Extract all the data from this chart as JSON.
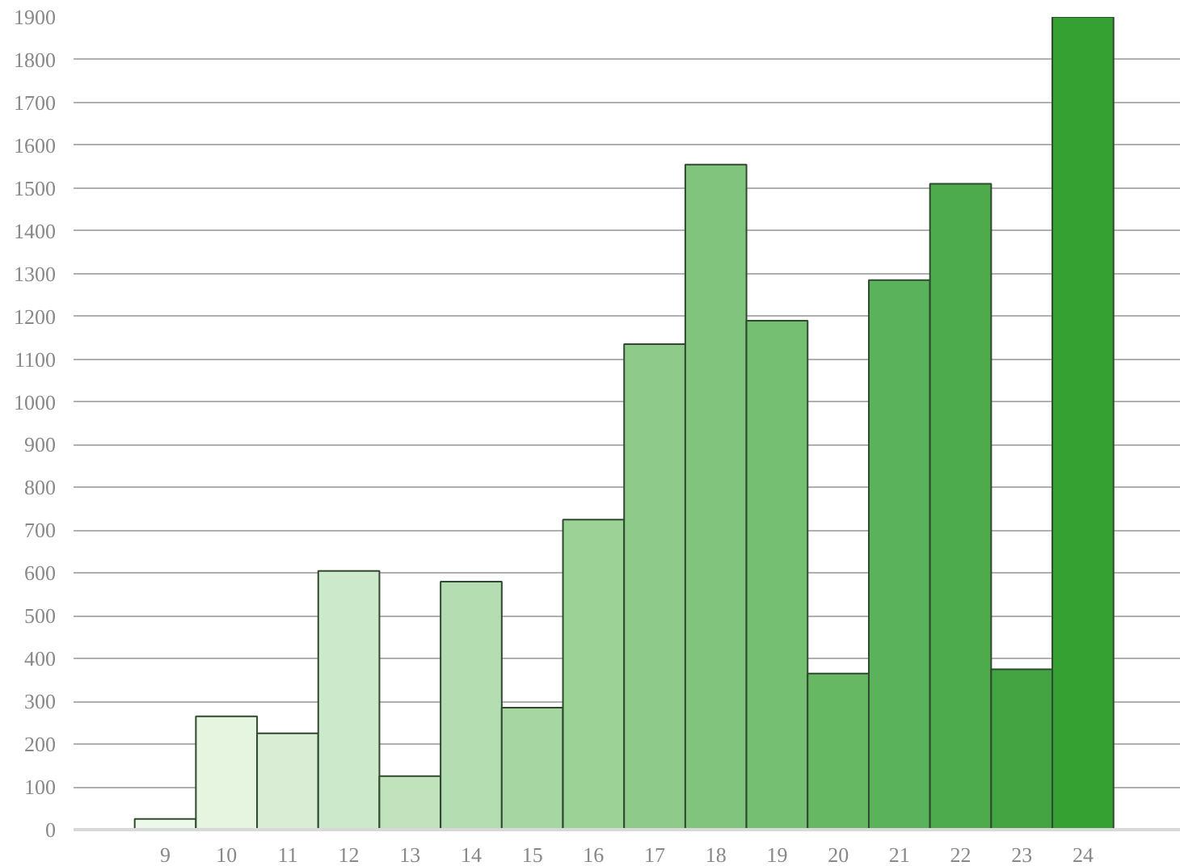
{
  "chart_data": {
    "type": "bar",
    "x": [
      9,
      10,
      11,
      12,
      13,
      14,
      15,
      16,
      17,
      18,
      19,
      20,
      21,
      22,
      23,
      24
    ],
    "values": [
      25,
      265,
      225,
      605,
      125,
      580,
      285,
      725,
      1135,
      1555,
      1190,
      365,
      1285,
      1510,
      375,
      1900
    ],
    "colors": [
      "#edf8ea",
      "#e5f5e0",
      "#d8edd3",
      "#cde9cc",
      "#c0e3bc",
      "#b4deb1",
      "#a6d7a3",
      "#9bd295",
      "#8ecb8a",
      "#80c47d",
      "#74bf72",
      "#66b863",
      "#5ab25a",
      "#4dab4c",
      "#42a541",
      "#35a133"
    ],
    "xlim": [
      7.5,
      25.6
    ],
    "xticks": [
      9,
      10,
      11,
      12,
      13,
      14,
      15,
      16,
      17,
      18,
      19,
      20,
      21,
      22,
      23,
      24
    ],
    "ylim": [
      0,
      1900
    ],
    "yticks": [
      0,
      100,
      200,
      300,
      400,
      500,
      600,
      700,
      800,
      900,
      1000,
      1100,
      1200,
      1300,
      1400,
      1500,
      1600,
      1700,
      1800,
      1900
    ],
    "grid": "y"
  }
}
